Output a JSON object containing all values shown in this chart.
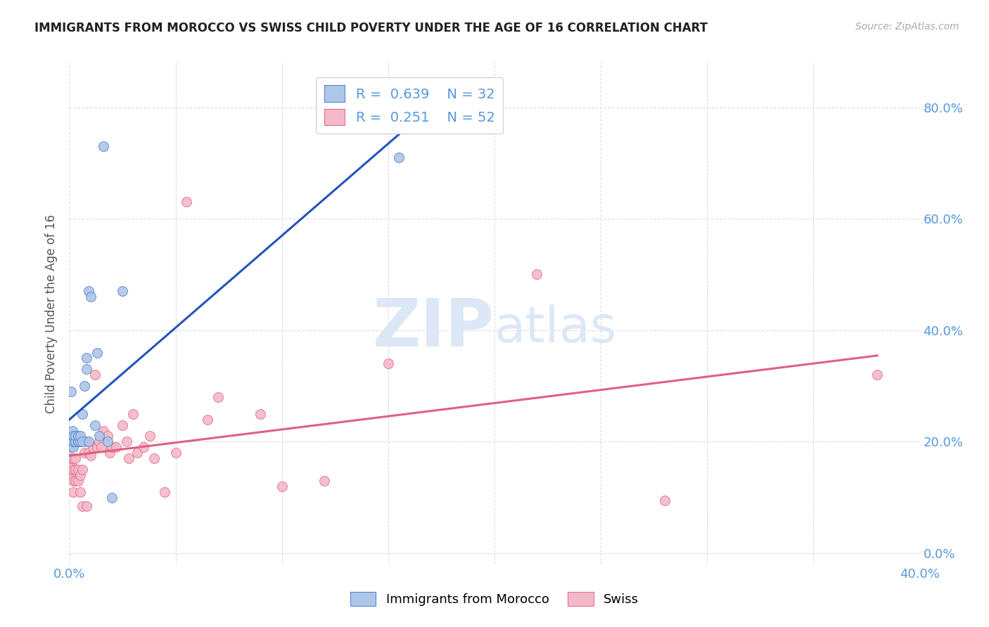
{
  "title": "IMMIGRANTS FROM MOROCCO VS SWISS CHILD POVERTY UNDER THE AGE OF 16 CORRELATION CHART",
  "source": "Source: ZipAtlas.com",
  "ylabel": "Child Poverty Under the Age of 16",
  "xlim": [
    0.0,
    0.4
  ],
  "ylim": [
    -0.02,
    0.88
  ],
  "morocco_x": [
    0.0005,
    0.001,
    0.001,
    0.001,
    0.0015,
    0.002,
    0.002,
    0.002,
    0.003,
    0.003,
    0.003,
    0.004,
    0.004,
    0.004,
    0.005,
    0.005,
    0.006,
    0.006,
    0.007,
    0.008,
    0.008,
    0.009,
    0.009,
    0.01,
    0.012,
    0.013,
    0.014,
    0.016,
    0.018,
    0.02,
    0.025,
    0.155
  ],
  "morocco_y": [
    0.19,
    0.29,
    0.2,
    0.21,
    0.22,
    0.19,
    0.2,
    0.21,
    0.2,
    0.2,
    0.21,
    0.2,
    0.2,
    0.21,
    0.2,
    0.21,
    0.2,
    0.25,
    0.3,
    0.33,
    0.35,
    0.2,
    0.47,
    0.46,
    0.23,
    0.36,
    0.21,
    0.73,
    0.2,
    0.1,
    0.47,
    0.71
  ],
  "swiss_x": [
    0.0005,
    0.001,
    0.001,
    0.001,
    0.002,
    0.002,
    0.002,
    0.002,
    0.003,
    0.003,
    0.003,
    0.004,
    0.004,
    0.005,
    0.005,
    0.006,
    0.006,
    0.007,
    0.008,
    0.008,
    0.009,
    0.01,
    0.011,
    0.012,
    0.013,
    0.014,
    0.015,
    0.016,
    0.018,
    0.019,
    0.02,
    0.022,
    0.025,
    0.027,
    0.028,
    0.03,
    0.032,
    0.035,
    0.038,
    0.04,
    0.045,
    0.05,
    0.055,
    0.065,
    0.07,
    0.09,
    0.1,
    0.12,
    0.15,
    0.22,
    0.28,
    0.38
  ],
  "swiss_y": [
    0.14,
    0.15,
    0.16,
    0.17,
    0.11,
    0.13,
    0.15,
    0.17,
    0.13,
    0.15,
    0.17,
    0.13,
    0.15,
    0.11,
    0.14,
    0.085,
    0.15,
    0.18,
    0.2,
    0.085,
    0.18,
    0.175,
    0.19,
    0.32,
    0.19,
    0.2,
    0.19,
    0.22,
    0.21,
    0.18,
    0.19,
    0.19,
    0.23,
    0.2,
    0.17,
    0.25,
    0.18,
    0.19,
    0.21,
    0.17,
    0.11,
    0.18,
    0.63,
    0.24,
    0.28,
    0.25,
    0.12,
    0.13,
    0.34,
    0.5,
    0.095,
    0.32
  ],
  "morocco_color": "#aec6e8",
  "swiss_color": "#f5b8c8",
  "morocco_edge_color": "#5588cc",
  "swiss_edge_color": "#e07090",
  "morocco_line_color": "#2255bb",
  "swiss_line_color": "#e06080",
  "morocco_R": 0.639,
  "morocco_N": 32,
  "swiss_R": 0.251,
  "swiss_N": 52,
  "watermark_zip": "ZIP",
  "watermark_atlas": "atlas",
  "watermark_color": "#dce8f5",
  "legend_items": [
    "Immigrants from Morocco",
    "Swiss"
  ],
  "background_color": "#ffffff",
  "grid_color": "#dddddd",
  "title_color": "#222222",
  "tick_color": "#5599dd",
  "source_color": "#aaaaaa"
}
